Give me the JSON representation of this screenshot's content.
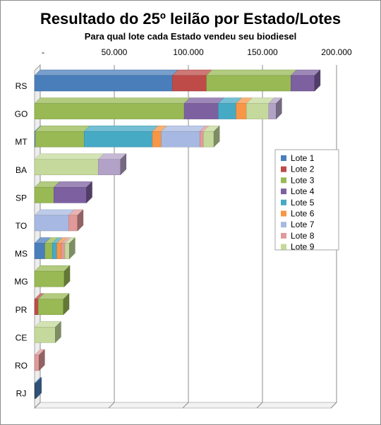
{
  "chart_data": {
    "type": "bar",
    "orientation": "horizontal",
    "stacked": true,
    "three_d": true,
    "title": "Resultado do 25º leilão por Estado/Lotes",
    "subtitle": "Para qual lote cada Estado vendeu seu biodiesel",
    "x_ticks": [
      "-",
      "50.000",
      "100.000",
      "150.000",
      "200.000"
    ],
    "xlim": [
      0,
      200000
    ],
    "grid": true,
    "legend_position": "right",
    "categories": [
      "RS",
      "GO",
      "MT",
      "BA",
      "SP",
      "TO",
      "MS",
      "MG",
      "PR",
      "CE",
      "RO",
      "RJ"
    ],
    "series": [
      {
        "name": "Lote 1",
        "color": "#4a7ebb",
        "values": [
          93000,
          0,
          500,
          0,
          0,
          0,
          7000,
          0,
          0,
          0,
          0,
          800
        ]
      },
      {
        "name": "Lote 2",
        "color": "#be4b48",
        "values": [
          23000,
          0,
          0,
          0,
          0,
          0,
          0,
          0,
          2500,
          0,
          0,
          0
        ]
      },
      {
        "name": "Lote 3",
        "color": "#98b954",
        "values": [
          57000,
          101000,
          33000,
          0,
          13000,
          0,
          5000,
          20000,
          17000,
          0,
          0,
          0
        ]
      },
      {
        "name": "Lote 4",
        "color": "#7d60a0",
        "values": [
          16000,
          23000,
          0,
          0,
          22000,
          0,
          0,
          0,
          0,
          0,
          0,
          0
        ]
      },
      {
        "name": "Lote 5",
        "color": "#46aac5",
        "values": [
          0,
          12000,
          46000,
          0,
          0,
          0,
          3000,
          0,
          0,
          0,
          0,
          0
        ]
      },
      {
        "name": "Lote 6",
        "color": "#f79646",
        "values": [
          0,
          7000,
          6000,
          0,
          0,
          0,
          3000,
          0,
          0,
          0,
          0,
          0
        ]
      },
      {
        "name": "Lote 7",
        "color": "#a7b9e2",
        "values": [
          0,
          0,
          26000,
          0,
          0,
          23000,
          0,
          0,
          0,
          0,
          0,
          0
        ]
      },
      {
        "name": "Lote 8",
        "color": "#e1999a",
        "values": [
          0,
          0,
          2500,
          0,
          0,
          6000,
          2500,
          0,
          0,
          0,
          3000,
          0
        ]
      },
      {
        "name": "Lote 9",
        "color": "#c4d99b",
        "values": [
          0,
          15000,
          7000,
          43000,
          0,
          0,
          3000,
          0,
          0,
          14000,
          0,
          0
        ]
      },
      {
        "name": "",
        "color": "#b3a2c7",
        "values": [
          0,
          5000,
          0,
          15000,
          0,
          0,
          0,
          0,
          0,
          0,
          0,
          0
        ]
      }
    ]
  }
}
